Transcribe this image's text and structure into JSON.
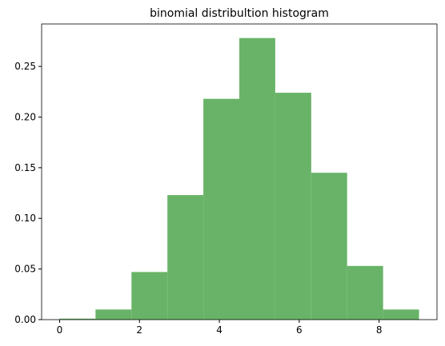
{
  "chart_data": {
    "type": "histogram",
    "title": "binomial distribultion histogram",
    "bins": [
      0,
      0.9,
      1.8,
      2.7,
      3.6,
      4.5,
      5.4,
      6.3,
      7.2,
      8.1,
      9.0
    ],
    "values": [
      0.001,
      0.01,
      0.047,
      0.123,
      0.218,
      0.278,
      0.224,
      0.145,
      0.053,
      0.01
    ],
    "color": "#68b368",
    "xlim": [
      -0.45,
      9.45
    ],
    "xticks": [
      0,
      2,
      4,
      6,
      8
    ],
    "ylim": [
      0,
      0.2919
    ],
    "yticks": [
      {
        "value": 0,
        "label": "0.00"
      },
      {
        "value": 0.05,
        "label": "0.05"
      },
      {
        "value": 0.1,
        "label": "0.10"
      },
      {
        "value": 0.15,
        "label": "0.15"
      },
      {
        "value": 0.2,
        "label": "0.20"
      },
      {
        "value": 0.25,
        "label": "0.25"
      }
    ]
  }
}
